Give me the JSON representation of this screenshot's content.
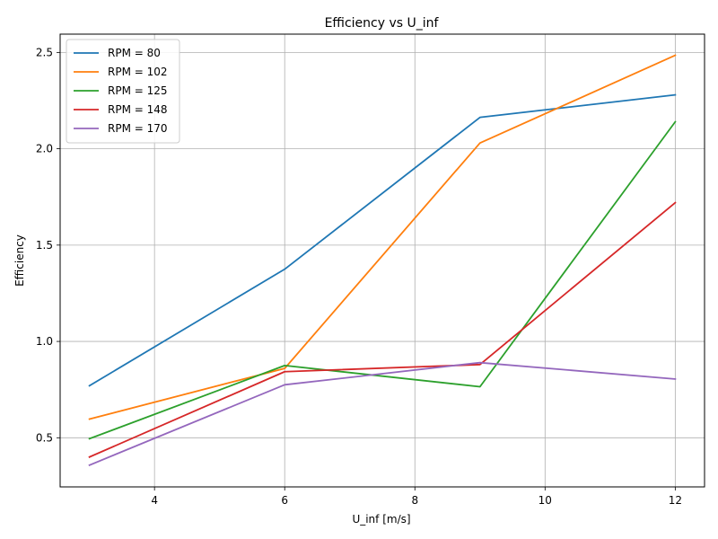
{
  "chart_data": {
    "type": "line",
    "title": "Efficiency vs U_inf",
    "xlabel": "U_inf [m/s]",
    "ylabel": "Efficiency",
    "x": [
      3,
      6,
      9,
      12
    ],
    "xlim": [
      2.55,
      12.45
    ],
    "ylim": [
      0.245,
      2.595
    ],
    "xticks": [
      4,
      6,
      8,
      10,
      12
    ],
    "yticks": [
      0.5,
      1.0,
      1.5,
      2.0,
      2.5
    ],
    "xtick_labels": [
      "4",
      "6",
      "8",
      "10",
      "12"
    ],
    "ytick_labels": [
      "0.5",
      "1.0",
      "1.5",
      "2.0",
      "2.5"
    ],
    "grid": true,
    "legend_position": "top-left",
    "series": [
      {
        "name": "RPM = 80",
        "color": "#1f77b4",
        "values": [
          0.77,
          1.375,
          2.163,
          2.28
        ]
      },
      {
        "name": "RPM = 102",
        "color": "#ff7f0e",
        "values": [
          0.597,
          0.86,
          2.03,
          2.485
        ]
      },
      {
        "name": "RPM = 125",
        "color": "#2ca02c",
        "values": [
          0.495,
          0.875,
          0.765,
          2.14
        ]
      },
      {
        "name": "RPM = 148",
        "color": "#d62728",
        "values": [
          0.4,
          0.843,
          0.88,
          1.72
        ]
      },
      {
        "name": "RPM = 170",
        "color": "#9467bd",
        "values": [
          0.358,
          0.775,
          0.89,
          0.805
        ]
      }
    ]
  }
}
